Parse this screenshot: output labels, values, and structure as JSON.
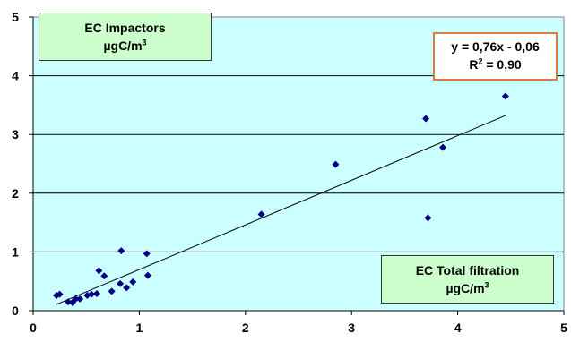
{
  "chart_data": {
    "type": "scatter",
    "xlim": [
      0,
      5
    ],
    "ylim": [
      0,
      5
    ],
    "x_ticks": [
      "0",
      "1",
      "2",
      "3",
      "4",
      "5"
    ],
    "y_ticks": [
      "0",
      "1",
      "2",
      "3",
      "4",
      "5"
    ],
    "grid": "horizontal",
    "plot_background": "#ccffff",
    "marker_color": "#000080",
    "ylabel_line1": "EC Impactors",
    "ylabel_line2": "µgC/m",
    "xlabel_line1": "EC Total filtration",
    "xlabel_line2": "µgC/m",
    "unit_superscript": "3",
    "equation": "y = 0,76x - 0,06",
    "r2_prefix": "R",
    "r2_superscript": "2",
    "r2_value": " = 0,90",
    "trendline": {
      "slope": 0.76,
      "intercept": -0.06,
      "x_range": [
        0.22,
        4.45
      ]
    },
    "points": [
      {
        "x": 0.22,
        "y": 0.26
      },
      {
        "x": 0.25,
        "y": 0.28
      },
      {
        "x": 0.33,
        "y": 0.15
      },
      {
        "x": 0.37,
        "y": 0.14
      },
      {
        "x": 0.4,
        "y": 0.2
      },
      {
        "x": 0.44,
        "y": 0.2
      },
      {
        "x": 0.51,
        "y": 0.26
      },
      {
        "x": 0.55,
        "y": 0.28
      },
      {
        "x": 0.6,
        "y": 0.29
      },
      {
        "x": 0.62,
        "y": 0.68
      },
      {
        "x": 0.67,
        "y": 0.59
      },
      {
        "x": 0.74,
        "y": 0.33
      },
      {
        "x": 0.82,
        "y": 0.46
      },
      {
        "x": 0.83,
        "y": 1.02
      },
      {
        "x": 0.88,
        "y": 0.39
      },
      {
        "x": 0.94,
        "y": 0.49
      },
      {
        "x": 1.07,
        "y": 0.97
      },
      {
        "x": 1.08,
        "y": 0.6
      },
      {
        "x": 2.15,
        "y": 1.64
      },
      {
        "x": 2.85,
        "y": 2.49
      },
      {
        "x": 3.7,
        "y": 3.27
      },
      {
        "x": 3.72,
        "y": 1.58
      },
      {
        "x": 3.86,
        "y": 2.78
      },
      {
        "x": 4.45,
        "y": 3.65
      }
    ]
  }
}
